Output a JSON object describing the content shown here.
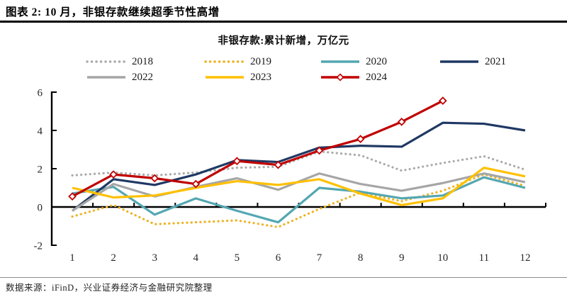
{
  "header": {
    "title": "图表 2: 10 月，非银存款继续超季节性高增"
  },
  "footer": {
    "source": "数据来源：iFinD，兴业证券经济与金融研究院整理"
  },
  "chart_data": {
    "type": "line",
    "title": "非银存款:累计新增，万亿元",
    "xlabel": "",
    "ylabel": "",
    "x": [
      1,
      2,
      3,
      4,
      5,
      6,
      7,
      8,
      9,
      10,
      11,
      12
    ],
    "ylim": [
      -2,
      6
    ],
    "yticks": [
      -2,
      0,
      2,
      4,
      6
    ],
    "grid": false,
    "legend_position": "top",
    "series": [
      {
        "name": "2018",
        "color": "#aaaaaa",
        "style": "dotted",
        "marker": "none",
        "values": [
          1.65,
          1.8,
          1.65,
          1.8,
          2.05,
          2.1,
          2.9,
          2.7,
          1.9,
          2.3,
          2.65,
          1.95
        ]
      },
      {
        "name": "2019",
        "color": "#edb120",
        "style": "dotted",
        "marker": "none",
        "values": [
          -0.5,
          0.1,
          -0.9,
          -0.8,
          -0.7,
          -1.05,
          -0.1,
          0.75,
          0.3,
          0.85,
          1.7,
          1.1
        ]
      },
      {
        "name": "2020",
        "color": "#54a7b2",
        "style": "solid",
        "marker": "none",
        "values": [
          0.7,
          1.05,
          -0.4,
          0.45,
          -0.2,
          -0.8,
          1.0,
          0.8,
          0.45,
          0.6,
          1.55,
          1.0
        ]
      },
      {
        "name": "2021",
        "color": "#1f3864",
        "style": "solid",
        "marker": "none",
        "values": [
          -0.2,
          1.45,
          1.15,
          1.7,
          2.45,
          2.35,
          3.1,
          3.2,
          3.15,
          4.4,
          4.35,
          4.0
        ]
      },
      {
        "name": "2022",
        "color": "#a6a6a6",
        "style": "solid",
        "marker": "none",
        "values": [
          -0.2,
          1.2,
          0.55,
          1.05,
          1.5,
          0.9,
          1.75,
          1.2,
          0.85,
          1.25,
          1.75,
          1.3
        ]
      },
      {
        "name": "2023",
        "color": "#ffc000",
        "style": "solid",
        "marker": "none",
        "values": [
          1.0,
          0.5,
          0.6,
          1.0,
          1.35,
          1.15,
          1.45,
          0.7,
          0.1,
          0.45,
          2.05,
          1.6
        ]
      },
      {
        "name": "2024",
        "color": "#c00000",
        "style": "solid",
        "marker": "diamond",
        "values": [
          0.55,
          1.7,
          1.5,
          1.2,
          2.4,
          2.2,
          2.95,
          3.55,
          4.45,
          5.55
        ]
      }
    ]
  }
}
